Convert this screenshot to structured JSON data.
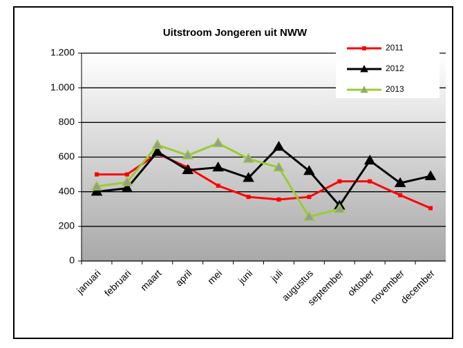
{
  "chart_data": {
    "type": "line",
    "title": "Uitstroom Jongeren uit NWW",
    "categories": [
      "januari",
      "februari",
      "maart",
      "april",
      "mei",
      "juni",
      "juli",
      "augustus",
      "september",
      "oktober",
      "november",
      "december"
    ],
    "series": [
      {
        "name": "2011",
        "color": "#ff0000",
        "marker": "square",
        "values": [
          500,
          500,
          620,
          540,
          435,
          370,
          355,
          370,
          460,
          460,
          380,
          305
        ]
      },
      {
        "name": "2012",
        "color": "#000000",
        "marker": "triangle",
        "values": [
          400,
          420,
          630,
          525,
          540,
          480,
          660,
          520,
          320,
          580,
          450,
          490
        ]
      },
      {
        "name": "2013",
        "color": "#99cc33",
        "marker": "triangle",
        "values": [
          430,
          455,
          670,
          610,
          680,
          590,
          540,
          255,
          300,
          null,
          null,
          null
        ]
      }
    ],
    "ylim": [
      0,
      1200
    ],
    "yticks": [
      0,
      200,
      400,
      600,
      800,
      {
        "value": 1000,
        "label": "1.000"
      },
      {
        "value": 1200,
        "label": "1.200"
      }
    ],
    "grid": true,
    "legend": "top-right"
  }
}
